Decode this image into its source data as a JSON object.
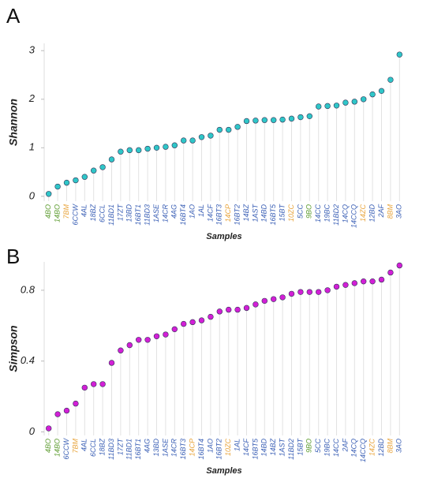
{
  "chart_data": [
    {
      "type": "dot",
      "panel": "A",
      "ylabel": "Shannon",
      "xlabel": "Samples",
      "color": "#2fc6c8",
      "categories": [
        "4BO",
        "14BO",
        "7BM",
        "6CCW",
        "4AL",
        "18BZ",
        "6CCL",
        "11BD1",
        "17ZT",
        "13BD",
        "16BT1",
        "11BD3",
        "1ASE",
        "14CR",
        "4AG",
        "16BT4",
        "1AO",
        "1AL",
        "14CF",
        "16BT3",
        "14CP",
        "16BT2",
        "14BZ",
        "1AST",
        "14BD",
        "16BT5",
        "15BT",
        "10ZC",
        "5CC",
        "9BO",
        "14CC",
        "19BC",
        "11BD2",
        "14CQ",
        "14CCQ",
        "14ZC",
        "12BD",
        "2AF",
        "8BM",
        "3AO"
      ],
      "category_colors": [
        "#5a9a2c",
        "#5a9a2c",
        "#e8a33a",
        "#3a5fb5",
        "#3a5fb5",
        "#3a5fb5",
        "#3a5fb5",
        "#3a5fb5",
        "#3a5fb5",
        "#3a5fb5",
        "#3a5fb5",
        "#3a5fb5",
        "#3a5fb5",
        "#3a5fb5",
        "#3a5fb5",
        "#3a5fb5",
        "#3a5fb5",
        "#3a5fb5",
        "#3a5fb5",
        "#3a5fb5",
        "#e8a33a",
        "#3a5fb5",
        "#3a5fb5",
        "#3a5fb5",
        "#3a5fb5",
        "#3a5fb5",
        "#3a5fb5",
        "#e8a33a",
        "#3a5fb5",
        "#5a9a2c",
        "#3a5fb5",
        "#3a5fb5",
        "#3a5fb5",
        "#3a5fb5",
        "#3a5fb5",
        "#e8a33a",
        "#3a5fb5",
        "#3a5fb5",
        "#e8a33a",
        "#3a5fb5"
      ],
      "values": [
        0.05,
        0.2,
        0.28,
        0.33,
        0.4,
        0.53,
        0.6,
        0.76,
        0.92,
        0.95,
        0.95,
        0.98,
        1.0,
        1.02,
        1.05,
        1.15,
        1.15,
        1.22,
        1.25,
        1.37,
        1.37,
        1.43,
        1.55,
        1.56,
        1.57,
        1.57,
        1.58,
        1.6,
        1.63,
        1.65,
        1.85,
        1.86,
        1.87,
        1.93,
        1.95,
        2.0,
        2.1,
        2.17,
        2.4,
        2.92
      ],
      "ylim": [
        -0.1,
        3.15
      ],
      "yticks": [
        0,
        1,
        2,
        3
      ]
    },
    {
      "type": "dot",
      "panel": "B",
      "ylabel": "Simpson",
      "xlabel": "Samples",
      "color": "#d21fd6",
      "categories": [
        "4BO",
        "14BO",
        "6CCW",
        "7BM",
        "4AL",
        "6CCL",
        "18BZ",
        "11BD3",
        "17ZT",
        "11BD1",
        "16BT1",
        "4AG",
        "13BD",
        "1ASE",
        "14CR",
        "16BT3",
        "14CP",
        "16BT4",
        "1AO",
        "16BT2",
        "10ZC",
        "1AL",
        "14CF",
        "16BT5",
        "14BD",
        "14BZ",
        "1AST",
        "11BD2",
        "15BT",
        "9BO",
        "5CC",
        "19BC",
        "14CC",
        "2AF",
        "14CQ",
        "14CCQ",
        "14ZC",
        "12BD",
        "8BM",
        "3AO"
      ],
      "category_colors": [
        "#5a9a2c",
        "#5a9a2c",
        "#3a5fb5",
        "#e8a33a",
        "#3a5fb5",
        "#3a5fb5",
        "#3a5fb5",
        "#3a5fb5",
        "#3a5fb5",
        "#3a5fb5",
        "#3a5fb5",
        "#3a5fb5",
        "#3a5fb5",
        "#3a5fb5",
        "#3a5fb5",
        "#3a5fb5",
        "#e8a33a",
        "#3a5fb5",
        "#3a5fb5",
        "#3a5fb5",
        "#e8a33a",
        "#3a5fb5",
        "#3a5fb5",
        "#3a5fb5",
        "#3a5fb5",
        "#3a5fb5",
        "#3a5fb5",
        "#3a5fb5",
        "#3a5fb5",
        "#5a9a2c",
        "#3a5fb5",
        "#3a5fb5",
        "#3a5fb5",
        "#3a5fb5",
        "#3a5fb5",
        "#3a5fb5",
        "#e8a33a",
        "#3a5fb5",
        "#e8a33a",
        "#3a5fb5"
      ],
      "values": [
        0.02,
        0.1,
        0.12,
        0.16,
        0.25,
        0.27,
        0.27,
        0.39,
        0.46,
        0.49,
        0.52,
        0.52,
        0.54,
        0.55,
        0.58,
        0.61,
        0.62,
        0.63,
        0.65,
        0.68,
        0.69,
        0.69,
        0.7,
        0.72,
        0.74,
        0.75,
        0.76,
        0.78,
        0.79,
        0.79,
        0.79,
        0.8,
        0.82,
        0.83,
        0.84,
        0.85,
        0.85,
        0.86,
        0.9,
        0.94
      ],
      "ylim": [
        -0.02,
        0.96
      ],
      "yticks": [
        0,
        0.4,
        0.8
      ]
    }
  ]
}
